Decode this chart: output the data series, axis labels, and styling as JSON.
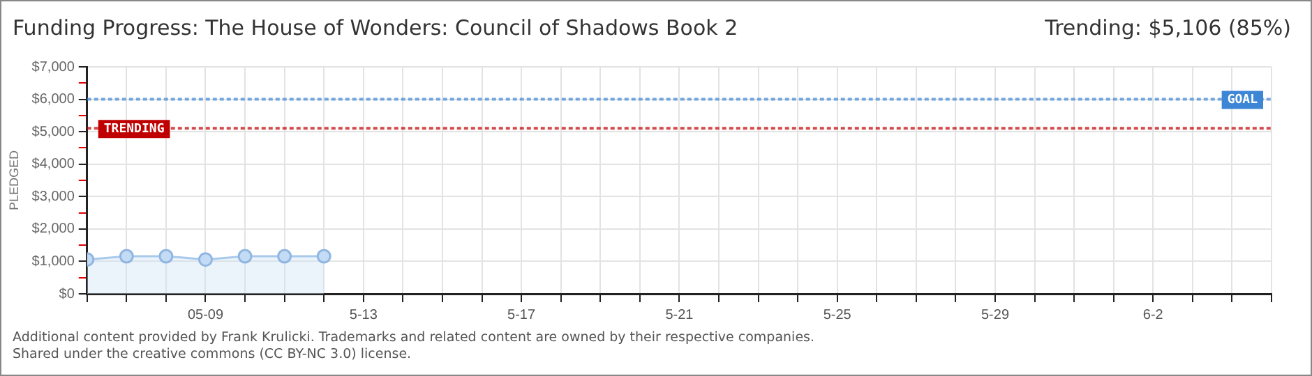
{
  "chart_data": {
    "type": "area",
    "title": "Funding Progress: The House of Wonders: Council of Shadows Book 2",
    "subtitle": "Trending:  $5,106 (85%)",
    "ylabel": "PLEDGED",
    "x": [
      "--05-06",
      "--05-07",
      "--05-08",
      "--05-09",
      "--05-10",
      "--05-11",
      "--05-12"
    ],
    "series": [
      {
        "color": "#a9c9ec",
        "values": [
          1060,
          1160,
          1160,
          1060,
          1160,
          1160,
          1160
        ]
      }
    ],
    "xlim": [
      "--05-06",
      "--06-05"
    ],
    "xticks": [
      {
        "value": "--05-06",
        "label": null
      },
      {
        "value": "--05-07",
        "label": null
      },
      {
        "value": "--05-08",
        "label": null
      },
      {
        "value": "--05-09",
        "label": "05-09"
      },
      {
        "value": "--05-10",
        "label": null
      },
      {
        "value": "--05-11",
        "label": null
      },
      {
        "value": "--05-12",
        "label": null
      },
      {
        "value": "--05-13",
        "label": "5-13"
      },
      {
        "value": "--05-14",
        "label": null
      },
      {
        "value": "--05-15",
        "label": null
      },
      {
        "value": "--05-16",
        "label": null
      },
      {
        "value": "--05-17",
        "label": "5-17"
      },
      {
        "value": "--05-18",
        "label": null
      },
      {
        "value": "--05-19",
        "label": null
      },
      {
        "value": "--05-20",
        "label": null
      },
      {
        "value": "--05-21",
        "label": "5-21"
      },
      {
        "value": "--05-22",
        "label": null
      },
      {
        "value": "--05-23",
        "label": null
      },
      {
        "value": "--05-24",
        "label": null
      },
      {
        "value": "--05-25",
        "label": "5-25"
      },
      {
        "value": "--05-26",
        "label": null
      },
      {
        "value": "--05-27",
        "label": null
      },
      {
        "value": "--05-28",
        "label": null
      },
      {
        "value": "--05-29",
        "label": "5-29"
      },
      {
        "value": "--05-30",
        "label": null
      },
      {
        "value": "--05-31",
        "label": null
      },
      {
        "value": "--06-01",
        "label": null
      },
      {
        "value": "--06-02",
        "label": "6-2"
      },
      {
        "value": "--06-03",
        "label": null
      },
      {
        "value": "--06-04",
        "label": null
      },
      {
        "value": "--06-05",
        "label": null
      }
    ],
    "ylim": [
      0,
      7000
    ],
    "yticks": [
      {
        "value": 0,
        "label": "$0"
      },
      {
        "value": 500,
        "label": null
      },
      {
        "value": 1000,
        "label": "$1,000"
      },
      {
        "value": 1500,
        "label": null
      },
      {
        "value": 2000,
        "label": "$2,000"
      },
      {
        "value": 2500,
        "label": null
      },
      {
        "value": 3000,
        "label": "$3,000"
      },
      {
        "value": 3500,
        "label": null
      },
      {
        "value": 4000,
        "label": "$4,000"
      },
      {
        "value": 4500,
        "label": null
      },
      {
        "value": 5000,
        "label": "$5,000"
      },
      {
        "value": 5500,
        "label": null
      },
      {
        "value": 6000,
        "label": "$6,000"
      },
      {
        "value": 6500,
        "label": null
      },
      {
        "value": 7000,
        "label": "$7,000"
      }
    ],
    "ref_lines": [
      {
        "axis": "y",
        "value": 6000,
        "label": "GOAL",
        "color": "#3d86d6",
        "line_style": "dotted"
      },
      {
        "axis": "y",
        "value": 5106,
        "label": "TRENDING",
        "color": "#c00000",
        "line_style": "dotted"
      }
    ],
    "grid": true,
    "marker": "circle",
    "annotations": [
      "Additional content provided by Frank Krulicki. Trademarks and related content are owned by their respective companies.",
      "Shared under the creative commons (CC BY-NC 3.0) license."
    ]
  }
}
